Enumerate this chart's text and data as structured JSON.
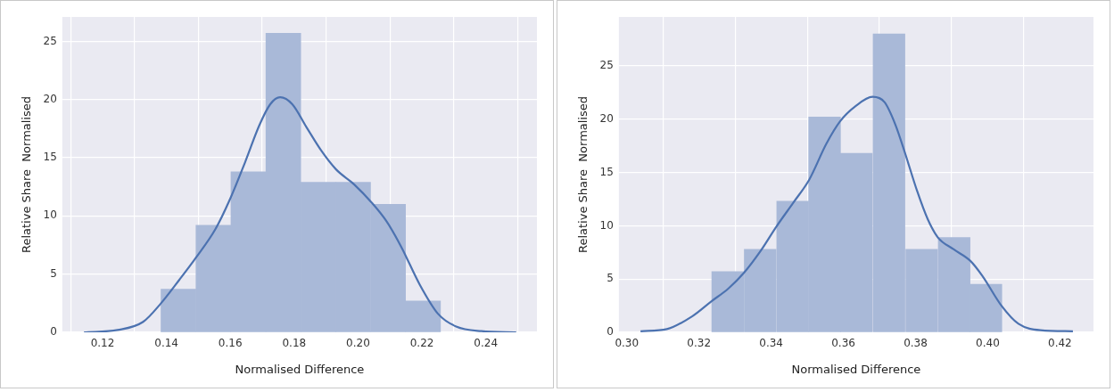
{
  "chart_data": [
    {
      "type": "histogram",
      "xlabel": "Normalised Difference",
      "ylabel": "Relative Share  Normalised",
      "grid": true,
      "xlim": [
        0.1074,
        0.256
      ],
      "ylim": [
        0,
        27.1
      ],
      "xticks": [
        {
          "value": 0.12,
          "label": "0.12"
        },
        {
          "value": 0.14,
          "label": "0.14"
        },
        {
          "value": 0.16,
          "label": "0.16"
        },
        {
          "value": 0.18,
          "label": "0.18"
        },
        {
          "value": 0.2,
          "label": "0.20"
        },
        {
          "value": 0.22,
          "label": "0.22"
        },
        {
          "value": 0.24,
          "label": "0.24"
        }
      ],
      "yticks": [
        0,
        5,
        10,
        15,
        20,
        25
      ],
      "series": [
        {
          "type": "histogram",
          "color": "#a9b9d8",
          "bins": [
            0.1383,
            0.1492,
            0.1602,
            0.1711,
            0.1821,
            0.193,
            0.2039,
            0.2149,
            0.2258
          ],
          "values": [
            3.7,
            9.2,
            13.8,
            25.7,
            12.9,
            12.9,
            11.0,
            2.7
          ]
        },
        {
          "type": "line",
          "color": "#4c72b0",
          "x": [
            0.1142,
            0.1247,
            0.1327,
            0.1383,
            0.144,
            0.1492,
            0.1554,
            0.16,
            0.1646,
            0.1691,
            0.1725,
            0.1756,
            0.1794,
            0.1839,
            0.1885,
            0.1931,
            0.1988,
            0.2044,
            0.209,
            0.2136,
            0.2193,
            0.225,
            0.2307,
            0.2386,
            0.2495
          ],
          "values": [
            0,
            0.2,
            0.9,
            2.5,
            4.5,
            6.4,
            8.9,
            11.5,
            14.6,
            17.8,
            19.6,
            20.2,
            19.6,
            17.6,
            15.6,
            14.0,
            12.7,
            11.1,
            9.5,
            7.3,
            4.1,
            1.6,
            0.5,
            0.1,
            0
          ]
        }
      ]
    },
    {
      "type": "histogram",
      "xlabel": "Normalised Difference",
      "ylabel": "Relative Share  Normalised",
      "grid": true,
      "xlim": [
        0.2978,
        0.4293
      ],
      "ylim": [
        0,
        29.6
      ],
      "xticks": [
        {
          "value": 0.3,
          "label": "0.30"
        },
        {
          "value": 0.32,
          "label": "0.32"
        },
        {
          "value": 0.34,
          "label": "0.34"
        },
        {
          "value": 0.36,
          "label": "0.36"
        },
        {
          "value": 0.38,
          "label": "0.38"
        },
        {
          "value": 0.4,
          "label": "0.40"
        },
        {
          "value": 0.42,
          "label": "0.42"
        }
      ],
      "yticks": [
        0,
        5,
        10,
        15,
        20,
        25
      ],
      "series": [
        {
          "type": "histogram",
          "color": "#a9b9d8",
          "bins": [
            0.3234,
            0.3325,
            0.3414,
            0.3505,
            0.3591,
            0.3681,
            0.3772,
            0.3862,
            0.3952,
            0.4038
          ],
          "values": [
            5.7,
            7.8,
            12.3,
            20.2,
            16.8,
            28.0,
            7.8,
            8.9,
            4.5
          ]
        },
        {
          "type": "line",
          "color": "#4c72b0",
          "x": [
            0.3038,
            0.3111,
            0.3181,
            0.3234,
            0.3281,
            0.3325,
            0.3372,
            0.3414,
            0.3462,
            0.3505,
            0.3553,
            0.3591,
            0.3633,
            0.3681,
            0.3714,
            0.3744,
            0.3772,
            0.3804,
            0.3834,
            0.3862,
            0.3905,
            0.3952,
            0.3985,
            0.4038,
            0.4085,
            0.4146,
            0.4236
          ],
          "values": [
            0.1,
            0.3,
            1.5,
            2.9,
            4.1,
            5.6,
            7.7,
            9.9,
            12.2,
            14.3,
            17.7,
            19.8,
            21.2,
            22.1,
            21.6,
            19.5,
            16.7,
            13.3,
            10.6,
            8.9,
            7.8,
            6.7,
            5.3,
            2.5,
            0.8,
            0.2,
            0.1
          ]
        }
      ]
    }
  ]
}
